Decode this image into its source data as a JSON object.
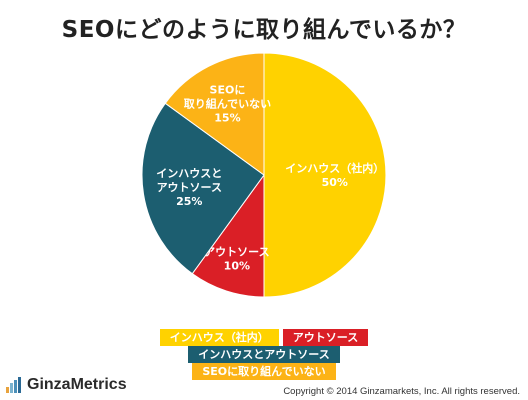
{
  "chart_data": {
    "type": "pie",
    "title": "SEOにどのように取り組んでいるか？",
    "slices": [
      {
        "label_lines": [
          "インハウス（社内）"
        ],
        "value": 50,
        "value_label": "50%",
        "color": "#FFD200",
        "label_color": "#ffffff"
      },
      {
        "label_lines": [
          "アウトソース"
        ],
        "value": 10,
        "value_label": "10%",
        "color": "#DA1F26",
        "label_color": "#ffffff"
      },
      {
        "label_lines": [
          "インハウスと",
          "アウトソース"
        ],
        "value": 25,
        "value_label": "25%",
        "color": "#1C5E70",
        "label_color": "#ffffff"
      },
      {
        "label_lines": [
          "SEOに",
          "取り組んでいない"
        ],
        "value": 15,
        "value_label": "15%",
        "color": "#FCB316",
        "label_color": "#ffffff"
      }
    ],
    "legend": {
      "rows": [
        [
          {
            "label": "インハウス（社内）",
            "color": "#FFD200"
          },
          {
            "label": "アウトソース",
            "color": "#DA1F26"
          }
        ],
        [
          {
            "label": "インハウスとアウトソース",
            "color": "#1C5E70"
          }
        ],
        [
          {
            "label": "SEOに取り組んでいない",
            "color": "#FCB316"
          }
        ]
      ],
      "placement": "bottom-center"
    }
  },
  "footer": {
    "logo_text": "GinzaMetrics",
    "logo_bar_colors": [
      "#E8A33D",
      "#7BB3CF",
      "#4C8FB8",
      "#2B6A96"
    ],
    "copyright": "Copyright © 2014 Ginzamarkets, Inc. All rights reserved."
  }
}
